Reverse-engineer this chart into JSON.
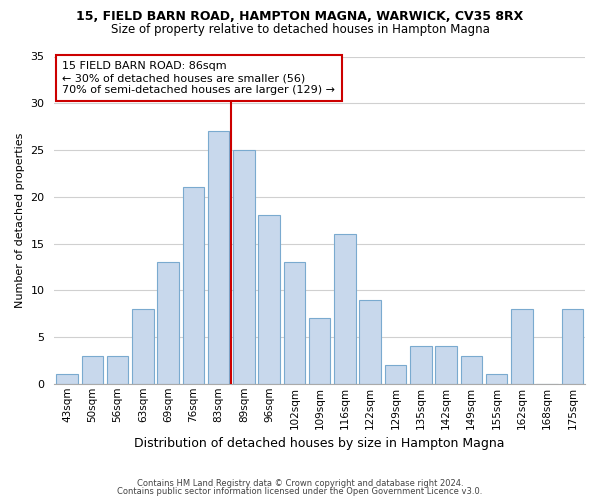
{
  "title_line1": "15, FIELD BARN ROAD, HAMPTON MAGNA, WARWICK, CV35 8RX",
  "title_line2": "Size of property relative to detached houses in Hampton Magna",
  "xlabel": "Distribution of detached houses by size in Hampton Magna",
  "ylabel": "Number of detached properties",
  "categories": [
    "43sqm",
    "50sqm",
    "56sqm",
    "63sqm",
    "69sqm",
    "76sqm",
    "83sqm",
    "89sqm",
    "96sqm",
    "102sqm",
    "109sqm",
    "116sqm",
    "122sqm",
    "129sqm",
    "135sqm",
    "142sqm",
    "149sqm",
    "155sqm",
    "162sqm",
    "168sqm",
    "175sqm"
  ],
  "values": [
    1,
    3,
    3,
    8,
    13,
    21,
    27,
    25,
    18,
    13,
    7,
    16,
    9,
    2,
    4,
    4,
    3,
    1,
    8,
    0,
    8
  ],
  "bar_color": "#c8d8ec",
  "bar_edge_color": "#7aaacf",
  "highlight_line_color": "#cc0000",
  "annotation_box_text": "15 FIELD BARN ROAD: 86sqm\n← 30% of detached houses are smaller (56)\n70% of semi-detached houses are larger (129) →",
  "annotation_box_color": "#ffffff",
  "annotation_box_border": "#cc0000",
  "ylim": [
    0,
    35
  ],
  "yticks": [
    0,
    5,
    10,
    15,
    20,
    25,
    30,
    35
  ],
  "footer_line1": "Contains HM Land Registry data © Crown copyright and database right 2024.",
  "footer_line2": "Contains public sector information licensed under the Open Government Licence v3.0.",
  "background_color": "#ffffff",
  "grid_color": "#d0d0d0"
}
